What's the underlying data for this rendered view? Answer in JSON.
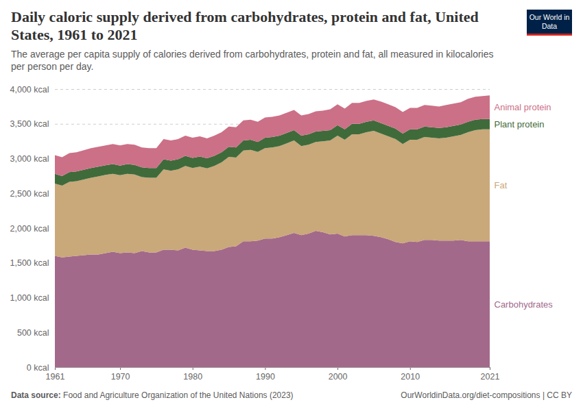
{
  "chart_data": {
    "type": "area",
    "title": "Daily caloric supply derived from carbohydrates, protein and fat, United States, 1961 to 2021",
    "subtitle": "The average per capita supply of calories derived from carbohydrates, protein and fat, all measured in kilocalories per person per day.",
    "logo": "Our World in Data",
    "source_label": "Data source:",
    "source": "Food and Agriculture Organization of the United Nations (2023)",
    "footer_right": "OurWorldinData.org/diet-compositions | CC BY",
    "stacked": true,
    "grid": true,
    "x": [
      1961,
      1962,
      1963,
      1964,
      1965,
      1966,
      1967,
      1968,
      1969,
      1970,
      1971,
      1972,
      1973,
      1974,
      1975,
      1976,
      1977,
      1978,
      1979,
      1980,
      1981,
      1982,
      1983,
      1984,
      1985,
      1986,
      1987,
      1988,
      1989,
      1990,
      1991,
      1992,
      1993,
      1994,
      1995,
      1996,
      1997,
      1998,
      1999,
      2000,
      2001,
      2002,
      2003,
      2004,
      2005,
      2006,
      2007,
      2008,
      2009,
      2010,
      2011,
      2012,
      2013,
      2014,
      2015,
      2016,
      2017,
      2018,
      2019,
      2020,
      2021
    ],
    "xlim": [
      1961,
      2021
    ],
    "xticks": [
      1961,
      1970,
      1980,
      1990,
      2000,
      2010,
      2021
    ],
    "ylim": [
      0,
      4000
    ],
    "yticks": [
      {
        "value": 0,
        "label": "0 kcal"
      },
      {
        "value": 500,
        "label": "500 kcal"
      },
      {
        "value": 1000,
        "label": "1,000 kcal"
      },
      {
        "value": 1500,
        "label": "1,500 kcal"
      },
      {
        "value": 2000,
        "label": "2,000 kcal"
      },
      {
        "value": 2500,
        "label": "2,500 kcal"
      },
      {
        "value": 3000,
        "label": "3,000 kcal"
      },
      {
        "value": 3500,
        "label": "3,500 kcal"
      },
      {
        "value": 4000,
        "label": "4,000 kcal"
      }
    ],
    "series": [
      {
        "name": "Carbohydrates",
        "color": "#a3698a",
        "values": [
          1600,
          1580,
          1590,
          1600,
          1610,
          1620,
          1620,
          1640,
          1660,
          1640,
          1650,
          1640,
          1670,
          1650,
          1650,
          1690,
          1690,
          1680,
          1720,
          1690,
          1680,
          1670,
          1670,
          1690,
          1730,
          1740,
          1810,
          1810,
          1820,
          1850,
          1850,
          1870,
          1900,
          1930,
          1900,
          1920,
          1960,
          1940,
          1910,
          1920,
          1880,
          1900,
          1900,
          1900,
          1890,
          1870,
          1840,
          1800,
          1780,
          1810,
          1800,
          1830,
          1830,
          1820,
          1820,
          1820,
          1830,
          1810,
          1810,
          1810,
          1810
        ]
      },
      {
        "name": "Fat",
        "color": "#c9a87a",
        "values": [
          1040,
          1030,
          1075,
          1075,
          1090,
          1105,
          1125,
          1125,
          1120,
          1120,
          1130,
          1130,
          1065,
          1075,
          1075,
          1155,
          1135,
          1165,
          1175,
          1175,
          1205,
          1190,
          1225,
          1255,
          1295,
          1275,
          1305,
          1315,
          1275,
          1300,
          1310,
          1310,
          1320,
          1330,
          1280,
          1280,
          1280,
          1310,
          1350,
          1410,
          1390,
          1450,
          1450,
          1480,
          1510,
          1490,
          1480,
          1480,
          1430,
          1460,
          1470,
          1480,
          1470,
          1470,
          1480,
          1500,
          1510,
          1570,
          1600,
          1610,
          1610
        ]
      },
      {
        "name": "Plant protein",
        "color": "#3f6b3b",
        "values": [
          140,
          140,
          140,
          140,
          140,
          140,
          140,
          140,
          140,
          140,
          140,
          140,
          140,
          140,
          140,
          145,
          145,
          145,
          145,
          145,
          145,
          145,
          145,
          145,
          145,
          145,
          145,
          145,
          145,
          150,
          150,
          150,
          150,
          150,
          150,
          150,
          150,
          150,
          150,
          150,
          150,
          150,
          150,
          150,
          150,
          150,
          150,
          150,
          150,
          150,
          150,
          150,
          150,
          150,
          150,
          150,
          150,
          150,
          150,
          150,
          150
        ]
      },
      {
        "name": "Animal protein",
        "color": "#cc7087",
        "values": [
          270,
          270,
          275,
          275,
          280,
          285,
          285,
          285,
          290,
          290,
          290,
          290,
          285,
          285,
          285,
          290,
          290,
          290,
          290,
          290,
          290,
          285,
          290,
          290,
          290,
          290,
          290,
          290,
          290,
          290,
          290,
          290,
          290,
          290,
          290,
          290,
          290,
          290,
          300,
          300,
          300,
          300,
          300,
          300,
          300,
          310,
          310,
          310,
          310,
          310,
          310,
          310,
          310,
          310,
          320,
          320,
          320,
          330,
          330,
          330,
          340
        ]
      }
    ]
  }
}
